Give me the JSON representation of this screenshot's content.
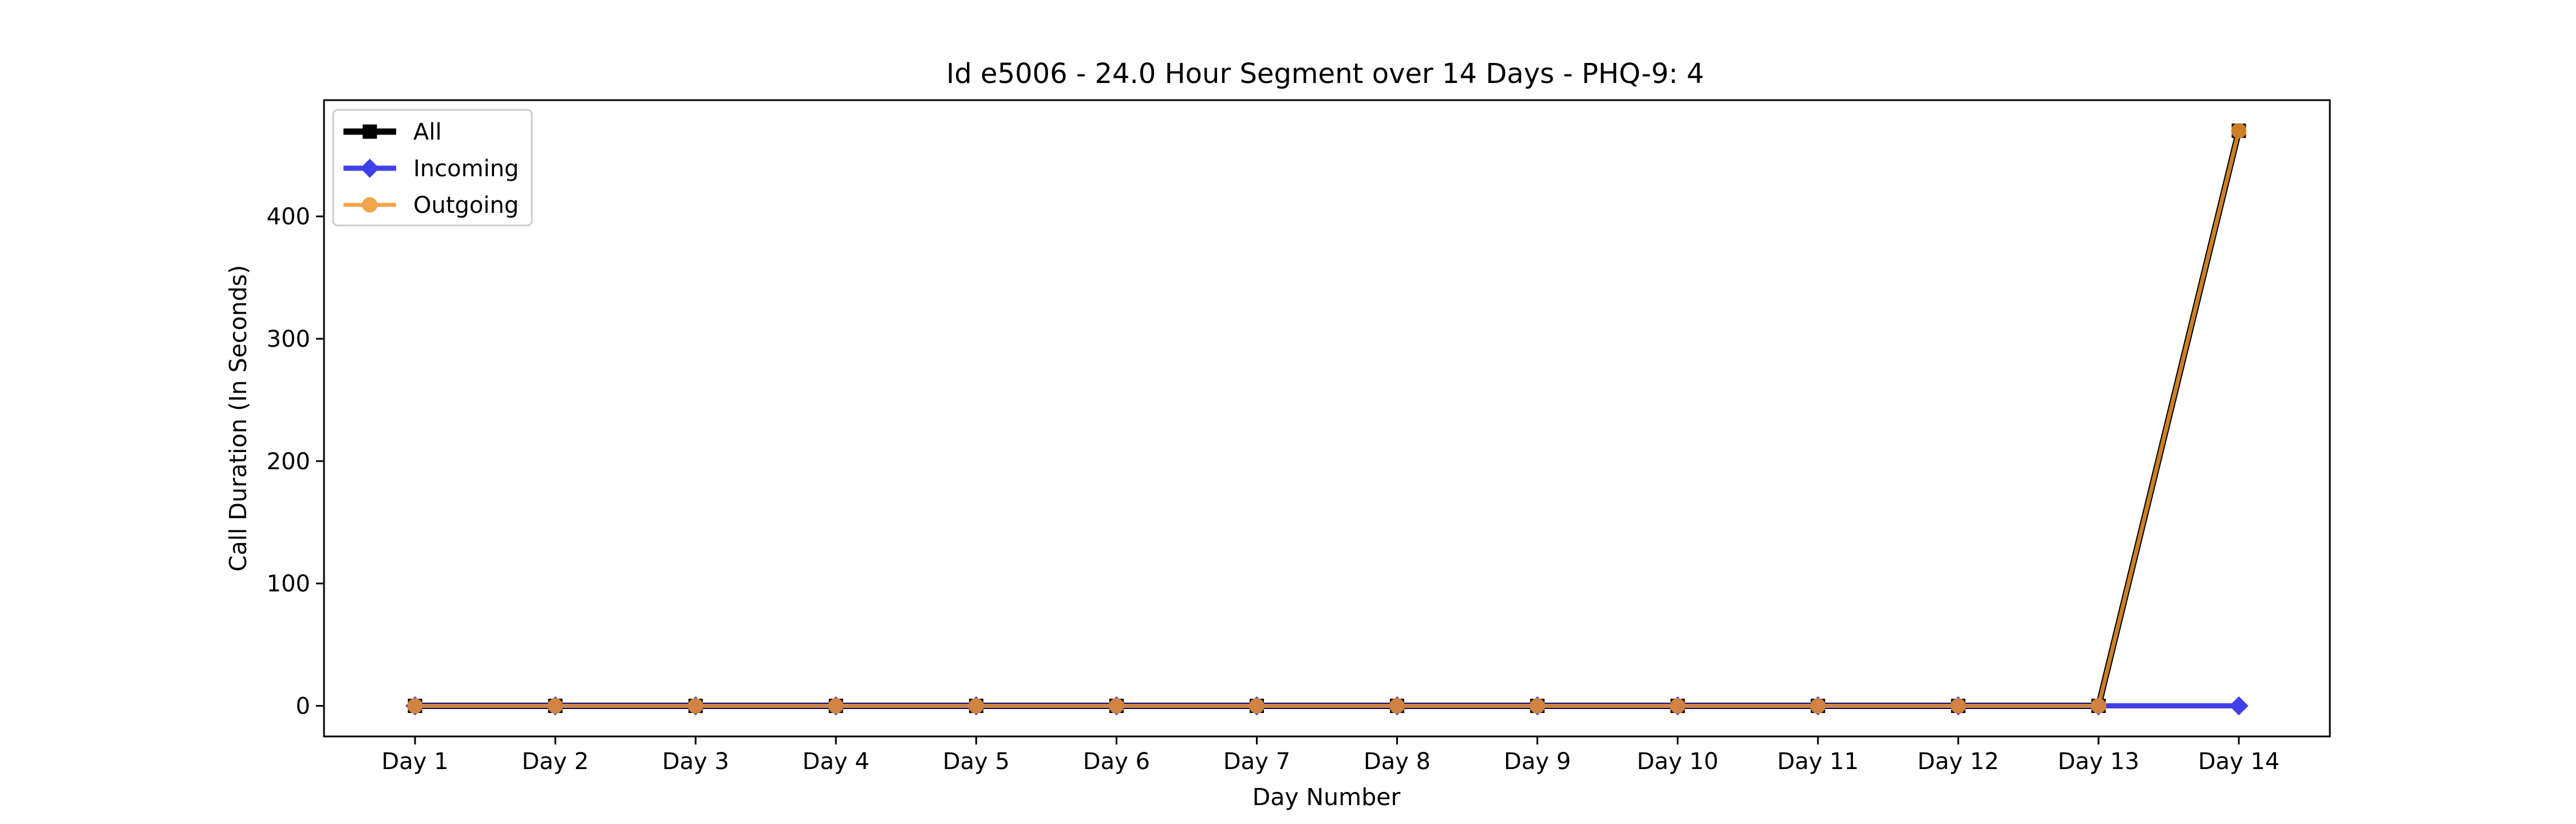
{
  "chart_data": {
    "type": "line",
    "title": "Id e5006 - 24.0 Hour Segment over 14 Days - PHQ-9: 4",
    "xlabel": "Day Number",
    "ylabel": "Call Duration (In Seconds)",
    "categories": [
      "Day 1",
      "Day 2",
      "Day 3",
      "Day 4",
      "Day 5",
      "Day 6",
      "Day 7",
      "Day 8",
      "Day 9",
      "Day 10",
      "Day 11",
      "Day 12",
      "Day 13",
      "Day 14"
    ],
    "ylim": [
      -25,
      495
    ],
    "yticks": [
      0,
      100,
      200,
      300,
      400
    ],
    "grid": false,
    "legend_position": "top-left",
    "series": [
      {
        "name": "All",
        "color": "#000000",
        "marker": "square",
        "values": [
          0,
          0,
          0,
          0,
          0,
          0,
          0,
          0,
          0,
          0,
          0,
          0,
          0,
          470
        ]
      },
      {
        "name": "Incoming",
        "color": "#1f1fe6",
        "marker": "diamond",
        "values": [
          0,
          0,
          0,
          0,
          0,
          0,
          0,
          0,
          0,
          0,
          0,
          0,
          0,
          0
        ]
      },
      {
        "name": "Outgoing",
        "color": "#f0962d",
        "marker": "circle",
        "values": [
          0,
          0,
          0,
          0,
          0,
          0,
          0,
          0,
          0,
          0,
          0,
          0,
          0,
          470
        ]
      }
    ]
  }
}
